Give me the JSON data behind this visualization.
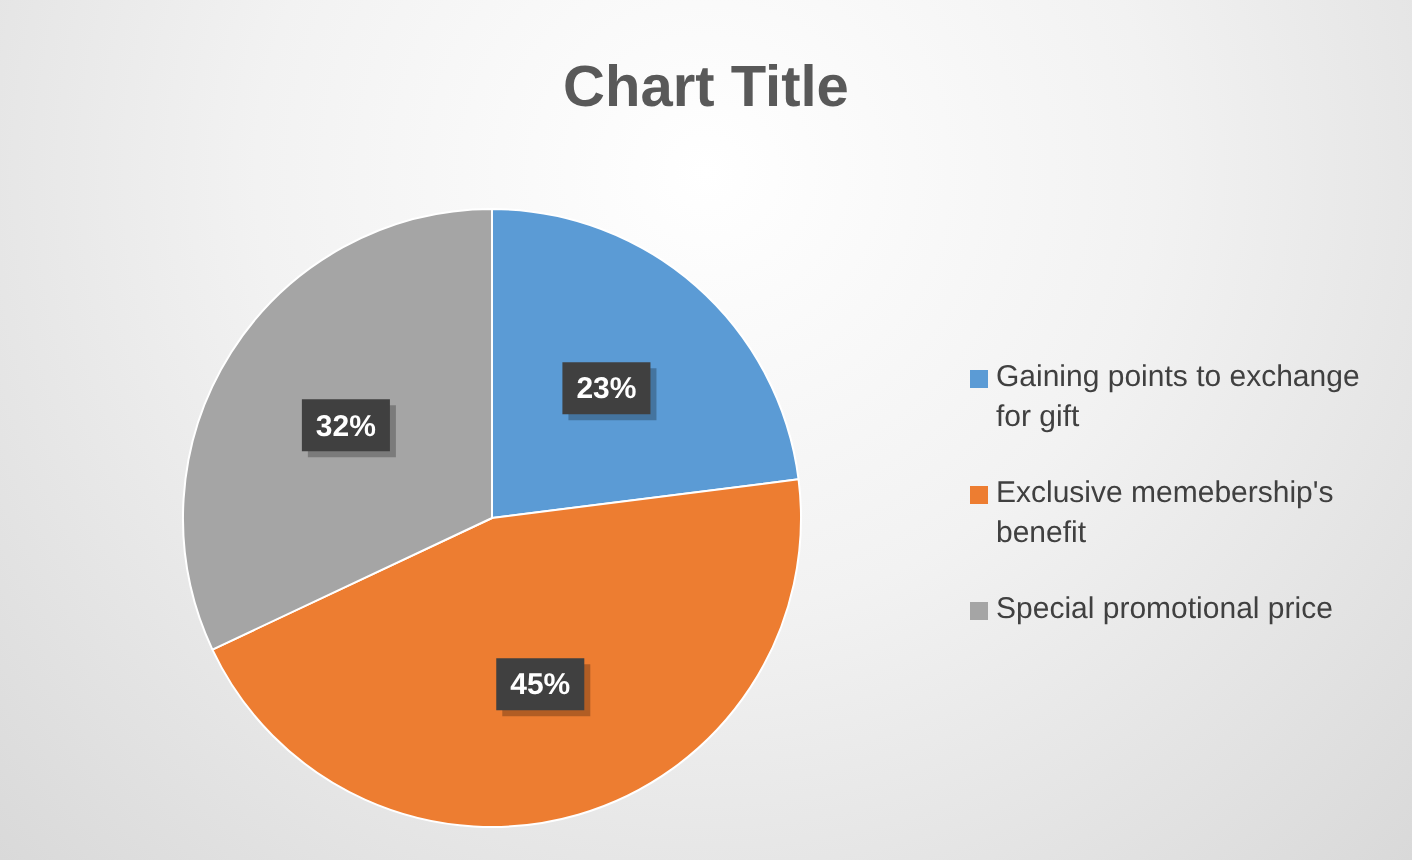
{
  "chart_data": {
    "type": "pie",
    "title": "Chart Title",
    "categories": [
      "Gaining points to exchange for gift",
      "Exclusive memebership's benefit",
      "Special promotional price"
    ],
    "values": [
      23,
      45,
      32
    ],
    "colors": [
      "#5b9bd5",
      "#ed7d31",
      "#a5a5a5"
    ],
    "value_labels": [
      "23%",
      "45%",
      "32%"
    ],
    "legend": "right"
  }
}
